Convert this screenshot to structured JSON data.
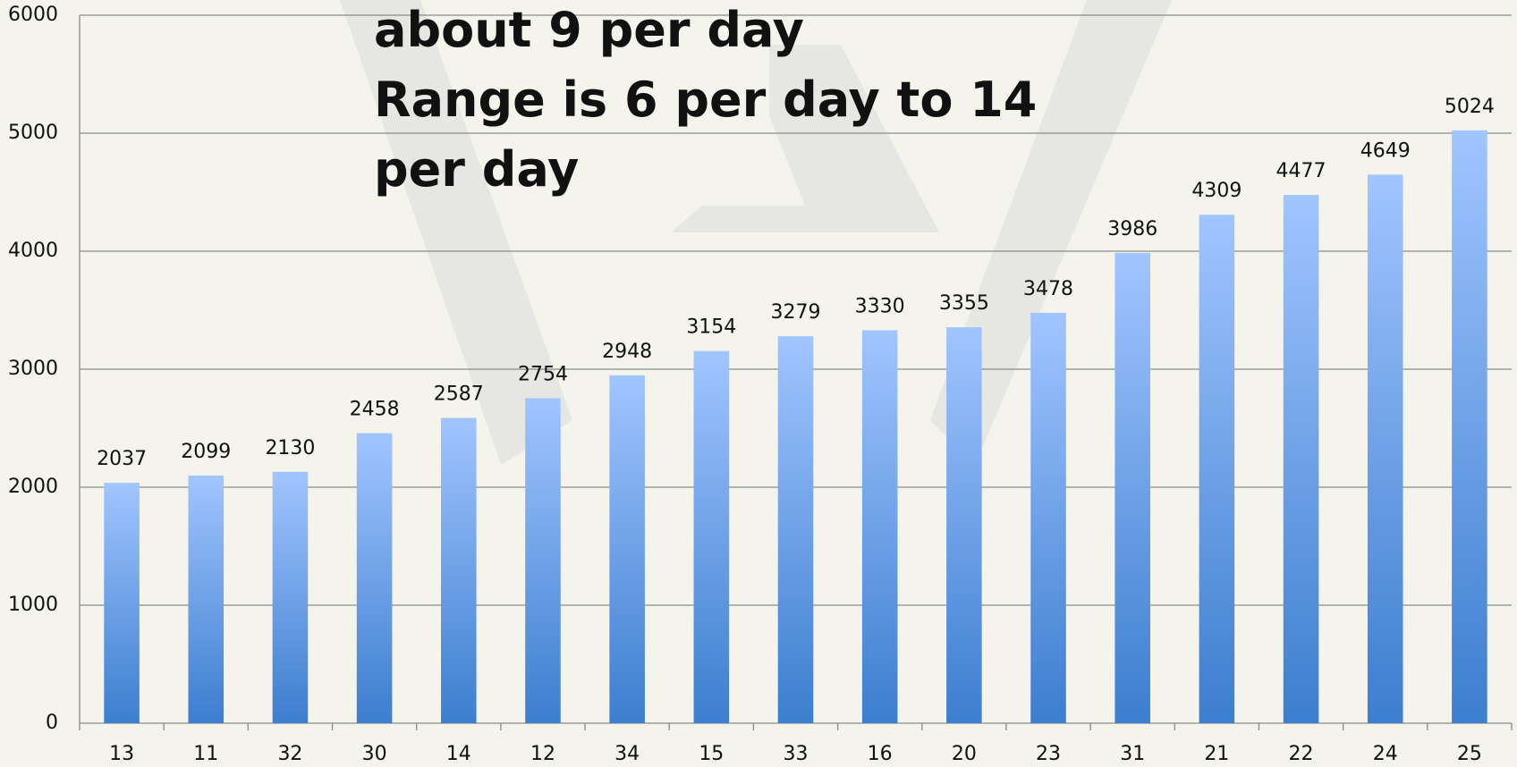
{
  "chart_data": {
    "type": "bar",
    "annotation": [
      "about 9 per day",
      "Range is 6 per day to 14",
      "per day"
    ],
    "categories": [
      "13",
      "11",
      "32",
      "30",
      "14",
      "12",
      "34",
      "15",
      "33",
      "16",
      "20",
      "23",
      "31",
      "21",
      "22",
      "24",
      "25"
    ],
    "values": [
      2037,
      2099,
      2130,
      2458,
      2587,
      2754,
      2948,
      3154,
      3279,
      3330,
      3355,
      3478,
      3986,
      4309,
      4477,
      4649,
      5024
    ],
    "gradient": [
      "#a1c5ff",
      "#3c7ecf"
    ],
    "ylim": [
      0,
      6000
    ],
    "yticks": [
      0,
      1000,
      2000,
      3000,
      4000,
      5000,
      6000
    ],
    "grid": true
  }
}
